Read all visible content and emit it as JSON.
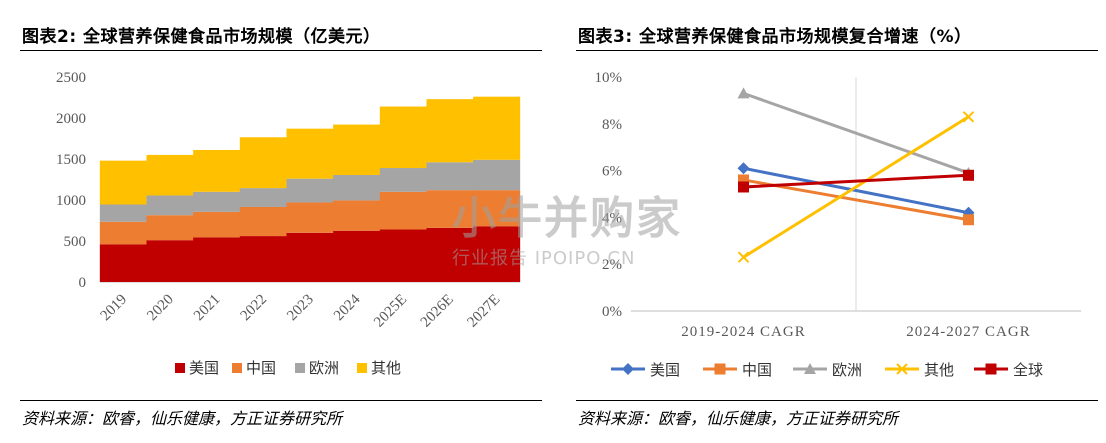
{
  "left": {
    "title": "图表2: 全球营养保健食品市场规模（亿美元）",
    "source": "资料来源：欧睿，仙乐健康，方正证券研究所"
  },
  "right": {
    "title": "图表3: 全球营养保健食品市场规模复合增速（%）",
    "source": "资料来源：欧睿，仙乐健康，方正证券研究所"
  },
  "watermark": {
    "main": "小牛并购家",
    "sub": "行业报告 IPOIPO.CN"
  },
  "colors": {
    "us": "#c00000",
    "cn": "#ed7d31",
    "eu": "#a5a5a5",
    "other": "#ffc000",
    "line_us": "#4472c4",
    "line_cn": "#ed7d31",
    "line_eu": "#a5a5a5",
    "line_other": "#ffc000",
    "line_global": "#c00000"
  },
  "chart_data": [
    {
      "type": "bar",
      "stacked": true,
      "title": "图表2: 全球营养保健食品市场规模（亿美元）",
      "categories": [
        "2019",
        "2020",
        "2021",
        "2022",
        "2023",
        "2024",
        "2025E",
        "2026E",
        "2027E"
      ],
      "ylim": [
        0,
        2500
      ],
      "yticks": [
        0,
        500,
        1000,
        1500,
        2000,
        2500
      ],
      "grid": false,
      "legend_position": "bottom",
      "series": [
        {
          "name": "美国",
          "color_key": "us",
          "values": [
            460,
            510,
            545,
            560,
            600,
            625,
            640,
            660,
            680
          ]
        },
        {
          "name": "中国",
          "color_key": "cn",
          "values": [
            275,
            305,
            310,
            355,
            370,
            370,
            460,
            460,
            440
          ]
        },
        {
          "name": "欧洲",
          "color_key": "eu",
          "values": [
            210,
            240,
            245,
            230,
            290,
            310,
            290,
            340,
            370
          ]
        },
        {
          "name": "其他",
          "color_key": "other",
          "values": [
            535,
            495,
            510,
            620,
            610,
            615,
            750,
            770,
            770
          ]
        }
      ]
    },
    {
      "type": "line",
      "title": "图表3: 全球营养保健食品市场规模复合增速（%）",
      "categories": [
        "2019-2024 CAGR",
        "2024-2027 CAGR"
      ],
      "ylim": [
        0,
        10
      ],
      "yticks": [
        "0%",
        "2%",
        "4%",
        "6%",
        "8%",
        "10%"
      ],
      "grid": false,
      "legend_position": "bottom",
      "series": [
        {
          "name": "美国",
          "color_key": "line_us",
          "marker": "diamond",
          "values": [
            6.1,
            4.2
          ]
        },
        {
          "name": "中国",
          "color_key": "line_cn",
          "marker": "square",
          "values": [
            5.6,
            3.9
          ]
        },
        {
          "name": "欧洲",
          "color_key": "line_eu",
          "marker": "triangle",
          "values": [
            9.3,
            5.9
          ]
        },
        {
          "name": "其他",
          "color_key": "line_other",
          "marker": "x",
          "values": [
            2.3,
            8.3
          ]
        },
        {
          "name": "全球",
          "color_key": "line_global",
          "marker": "square",
          "values": [
            5.3,
            5.8
          ]
        }
      ]
    }
  ]
}
